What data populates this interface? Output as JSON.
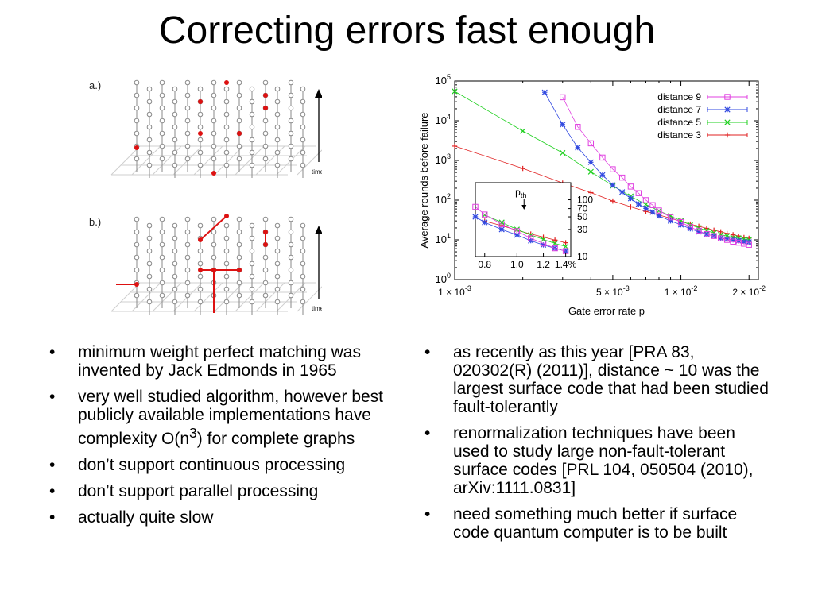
{
  "slide": {
    "title": "Correcting errors fast enough"
  },
  "diagram": {
    "panel_a_label": "a.)",
    "panel_b_label": "b.)",
    "time_label": "time",
    "defect_color": "#d11",
    "lattice_color": "#888888"
  },
  "left_bullets": [
    {
      "text": "minimum weight perfect matching was invented by Jack Edmonds in 1965"
    },
    {
      "pre": "very well studied algorithm, however best publicly available implementations have complexity O(n",
      "sup": "3",
      "post": ") for complete graphs"
    },
    {
      "text": "don’t support continuous processing"
    },
    {
      "text": "don’t support parallel processing"
    },
    {
      "text": "actually quite slow"
    }
  ],
  "right_bullets": [
    {
      "text": "as recently as this year [PRA 83, 020302(R) (2011)], distance ~ 10 was the largest surface code that had been studied fault-tolerantly"
    },
    {
      "text": "renormalization techniques have been used to study large non-fault-tolerant surface codes [PRL 104, 050504 (2010), arXiv:1111.0831]"
    },
    {
      "text": "need something much better if surface code quantum computer is to be built"
    }
  ],
  "chart_data": {
    "type": "line",
    "xscale": "log",
    "yscale": "log",
    "xlim": [
      0.001,
      0.022
    ],
    "ylim": [
      1,
      100000
    ],
    "xlabel": "Gate error rate p",
    "ylabel": "Average rounds before failure",
    "xticks": [
      {
        "value": 0.001,
        "label": "1 × 10",
        "exp": "-3"
      },
      {
        "value": 0.005,
        "label": "5 × 10",
        "exp": "-3"
      },
      {
        "value": 0.01,
        "label": "1 × 10",
        "exp": "-2"
      },
      {
        "value": 0.02,
        "label": "2 × 10",
        "exp": "-2"
      }
    ],
    "yticks": [
      {
        "value": 1,
        "exp": "0"
      },
      {
        "value": 10,
        "exp": "1"
      },
      {
        "value": 100,
        "exp": "2"
      },
      {
        "value": 1000,
        "exp": "3"
      },
      {
        "value": 10000,
        "exp": "4"
      },
      {
        "value": 100000,
        "exp": "5"
      }
    ],
    "legend_position": "top-right",
    "series": [
      {
        "name": "distance 9",
        "color": "#e040e0",
        "marker": "square",
        "x": [
          0.003,
          0.0035,
          0.004,
          0.0045,
          0.005,
          0.0055,
          0.006,
          0.0065,
          0.007,
          0.0075,
          0.008,
          0.009,
          0.01,
          0.011,
          0.012,
          0.013,
          0.014,
          0.015,
          0.016,
          0.017,
          0.018,
          0.019,
          0.02
        ],
        "y": [
          39000,
          7000,
          2700,
          1180,
          600,
          370,
          220,
          150,
          100,
          75,
          55,
          37,
          28,
          21,
          17,
          14,
          12.5,
          11,
          10,
          9,
          8.5,
          8,
          7.5
        ]
      },
      {
        "name": "distance 7",
        "color": "#3048e0",
        "marker": "star",
        "x": [
          0.0025,
          0.003,
          0.0035,
          0.004,
          0.0045,
          0.005,
          0.0055,
          0.006,
          0.0065,
          0.007,
          0.0075,
          0.008,
          0.009,
          0.01,
          0.011,
          0.012,
          0.013,
          0.014,
          0.015,
          0.016,
          0.017,
          0.018,
          0.019,
          0.02
        ],
        "y": [
          52000,
          8000,
          2100,
          900,
          430,
          240,
          160,
          110,
          80,
          62,
          50,
          40,
          30,
          24,
          19,
          16,
          14,
          12.5,
          11,
          10.5,
          10,
          9.5,
          9,
          8.8
        ]
      },
      {
        "name": "distance 5",
        "color": "#20d020",
        "marker": "x",
        "x": [
          0.001,
          0.002,
          0.003,
          0.004,
          0.005,
          0.006,
          0.007,
          0.008,
          0.009,
          0.01,
          0.011,
          0.012,
          0.013,
          0.014,
          0.015,
          0.016,
          0.017,
          0.018,
          0.019,
          0.02
        ],
        "y": [
          55000,
          5500,
          1550,
          520,
          230,
          125,
          78,
          54,
          40,
          30,
          24,
          20,
          17,
          15,
          13.5,
          12.5,
          11.5,
          11,
          10.5,
          10
        ]
      },
      {
        "name": "distance 3",
        "color": "#e02020",
        "marker": "plus",
        "x": [
          0.001,
          0.002,
          0.003,
          0.004,
          0.005,
          0.006,
          0.007,
          0.008,
          0.009,
          0.01,
          0.011,
          0.012,
          0.013,
          0.014,
          0.015,
          0.016,
          0.017,
          0.018,
          0.019,
          0.02
        ],
        "y": [
          2300,
          630,
          270,
          155,
          95,
          68,
          52,
          42,
          35,
          29,
          25,
          22,
          19.5,
          17.5,
          16,
          14.5,
          13.5,
          12.5,
          11.5,
          11
        ]
      }
    ],
    "inset": {
      "xscale": "log",
      "yscale": "log",
      "xlim": [
        0.0075,
        0.0145
      ],
      "ylim": [
        10,
        200
      ],
      "xticks": [
        {
          "value": 0.008,
          "label": "0.8"
        },
        {
          "value": 0.01,
          "label": "1.0"
        },
        {
          "value": 0.012,
          "label": "1.2"
        },
        {
          "value": 0.014,
          "label": "1.4%"
        }
      ],
      "yticks": [
        {
          "value": 100,
          "label": "100"
        },
        {
          "value": 70,
          "label": "70"
        },
        {
          "value": 50,
          "label": "50"
        },
        {
          "value": 30,
          "label": "30"
        },
        {
          "value": 10,
          "label": "10"
        }
      ],
      "annotation": {
        "text": "p",
        "sub": "th",
        "x": 0.0105
      }
    }
  }
}
